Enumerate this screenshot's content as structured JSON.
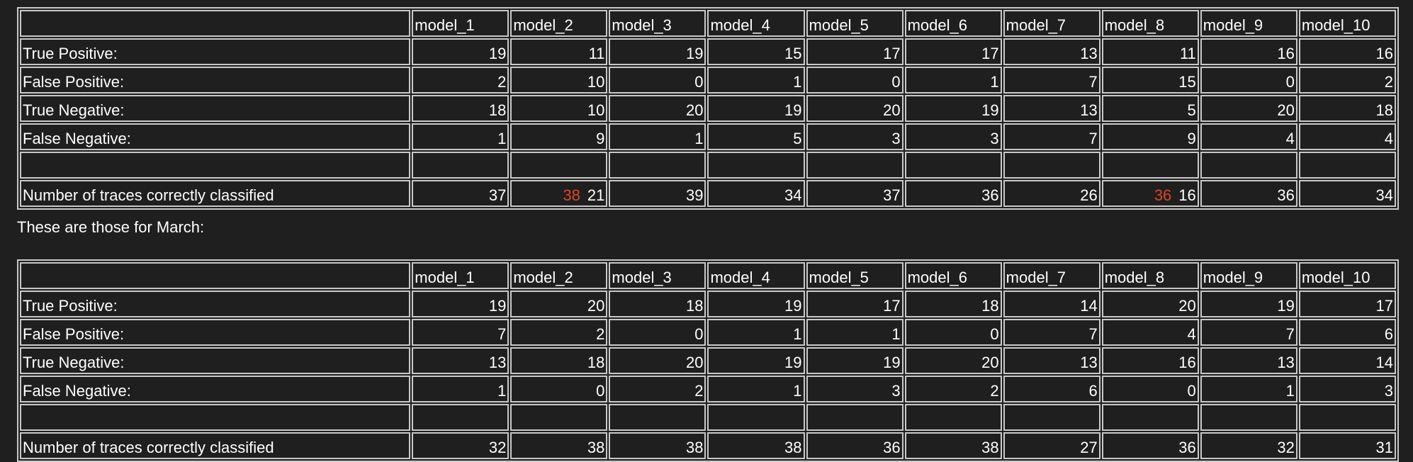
{
  "table1": {
    "columns": [
      "model_1",
      "model_2",
      "model_3",
      "model_4",
      "model_5",
      "model_6",
      "model_7",
      "model_8",
      "model_9",
      "model_10"
    ],
    "rows": [
      {
        "label": "True Positive:",
        "values": [
          "19",
          "11",
          "19",
          "15",
          "17",
          "17",
          "13",
          "11",
          "16",
          "16"
        ]
      },
      {
        "label": "False Positive:",
        "values": [
          "2",
          "10",
          "0",
          "1",
          "0",
          "1",
          "7",
          "15",
          "0",
          "2"
        ]
      },
      {
        "label": "True Negative:",
        "values": [
          "18",
          "10",
          "20",
          "19",
          "20",
          "19",
          "13",
          "5",
          "20",
          "18"
        ]
      },
      {
        "label": "False Negative:",
        "values": [
          "1",
          "9",
          "1",
          "5",
          "3",
          "3",
          "7",
          "9",
          "4",
          "4"
        ]
      }
    ],
    "total": {
      "label": "Number of traces correctly classified",
      "values": [
        {
          "value": "37",
          "old": ""
        },
        {
          "value": "21",
          "old": "38"
        },
        {
          "value": "39",
          "old": ""
        },
        {
          "value": "34",
          "old": ""
        },
        {
          "value": "37",
          "old": ""
        },
        {
          "value": "36",
          "old": ""
        },
        {
          "value": "26",
          "old": ""
        },
        {
          "value": "16",
          "old": "36"
        },
        {
          "value": "36",
          "old": ""
        },
        {
          "value": "34",
          "old": ""
        }
      ]
    }
  },
  "caption": "These are those for March:",
  "table2": {
    "columns": [
      "model_1",
      "model_2",
      "model_3",
      "model_4",
      "model_5",
      "model_6",
      "model_7",
      "model_8",
      "model_9",
      "model_10"
    ],
    "rows": [
      {
        "label": "True Positive:",
        "values": [
          "19",
          "20",
          "18",
          "19",
          "17",
          "18",
          "14",
          "20",
          "19",
          "17"
        ]
      },
      {
        "label": "False Positive:",
        "values": [
          "7",
          "2",
          "0",
          "1",
          "1",
          "0",
          "7",
          "4",
          "7",
          "6"
        ]
      },
      {
        "label": "True Negative:",
        "values": [
          "13",
          "18",
          "20",
          "19",
          "19",
          "20",
          "13",
          "16",
          "13",
          "14"
        ]
      },
      {
        "label": "False Negative:",
        "values": [
          "1",
          "0",
          "2",
          "1",
          "3",
          "2",
          "6",
          "0",
          "1",
          "3"
        ]
      }
    ],
    "total": {
      "label": "Number of traces correctly classified",
      "values": [
        {
          "value": "32",
          "old": ""
        },
        {
          "value": "38",
          "old": ""
        },
        {
          "value": "38",
          "old": ""
        },
        {
          "value": "38",
          "old": ""
        },
        {
          "value": "36",
          "old": ""
        },
        {
          "value": "38",
          "old": ""
        },
        {
          "value": "27",
          "old": ""
        },
        {
          "value": "36",
          "old": ""
        },
        {
          "value": "32",
          "old": ""
        },
        {
          "value": "31",
          "old": ""
        }
      ]
    }
  },
  "colors": {
    "background": "#1f1f1f",
    "text": "#ffffff",
    "border": "#c9c9c9",
    "highlight": "#e0442c"
  }
}
